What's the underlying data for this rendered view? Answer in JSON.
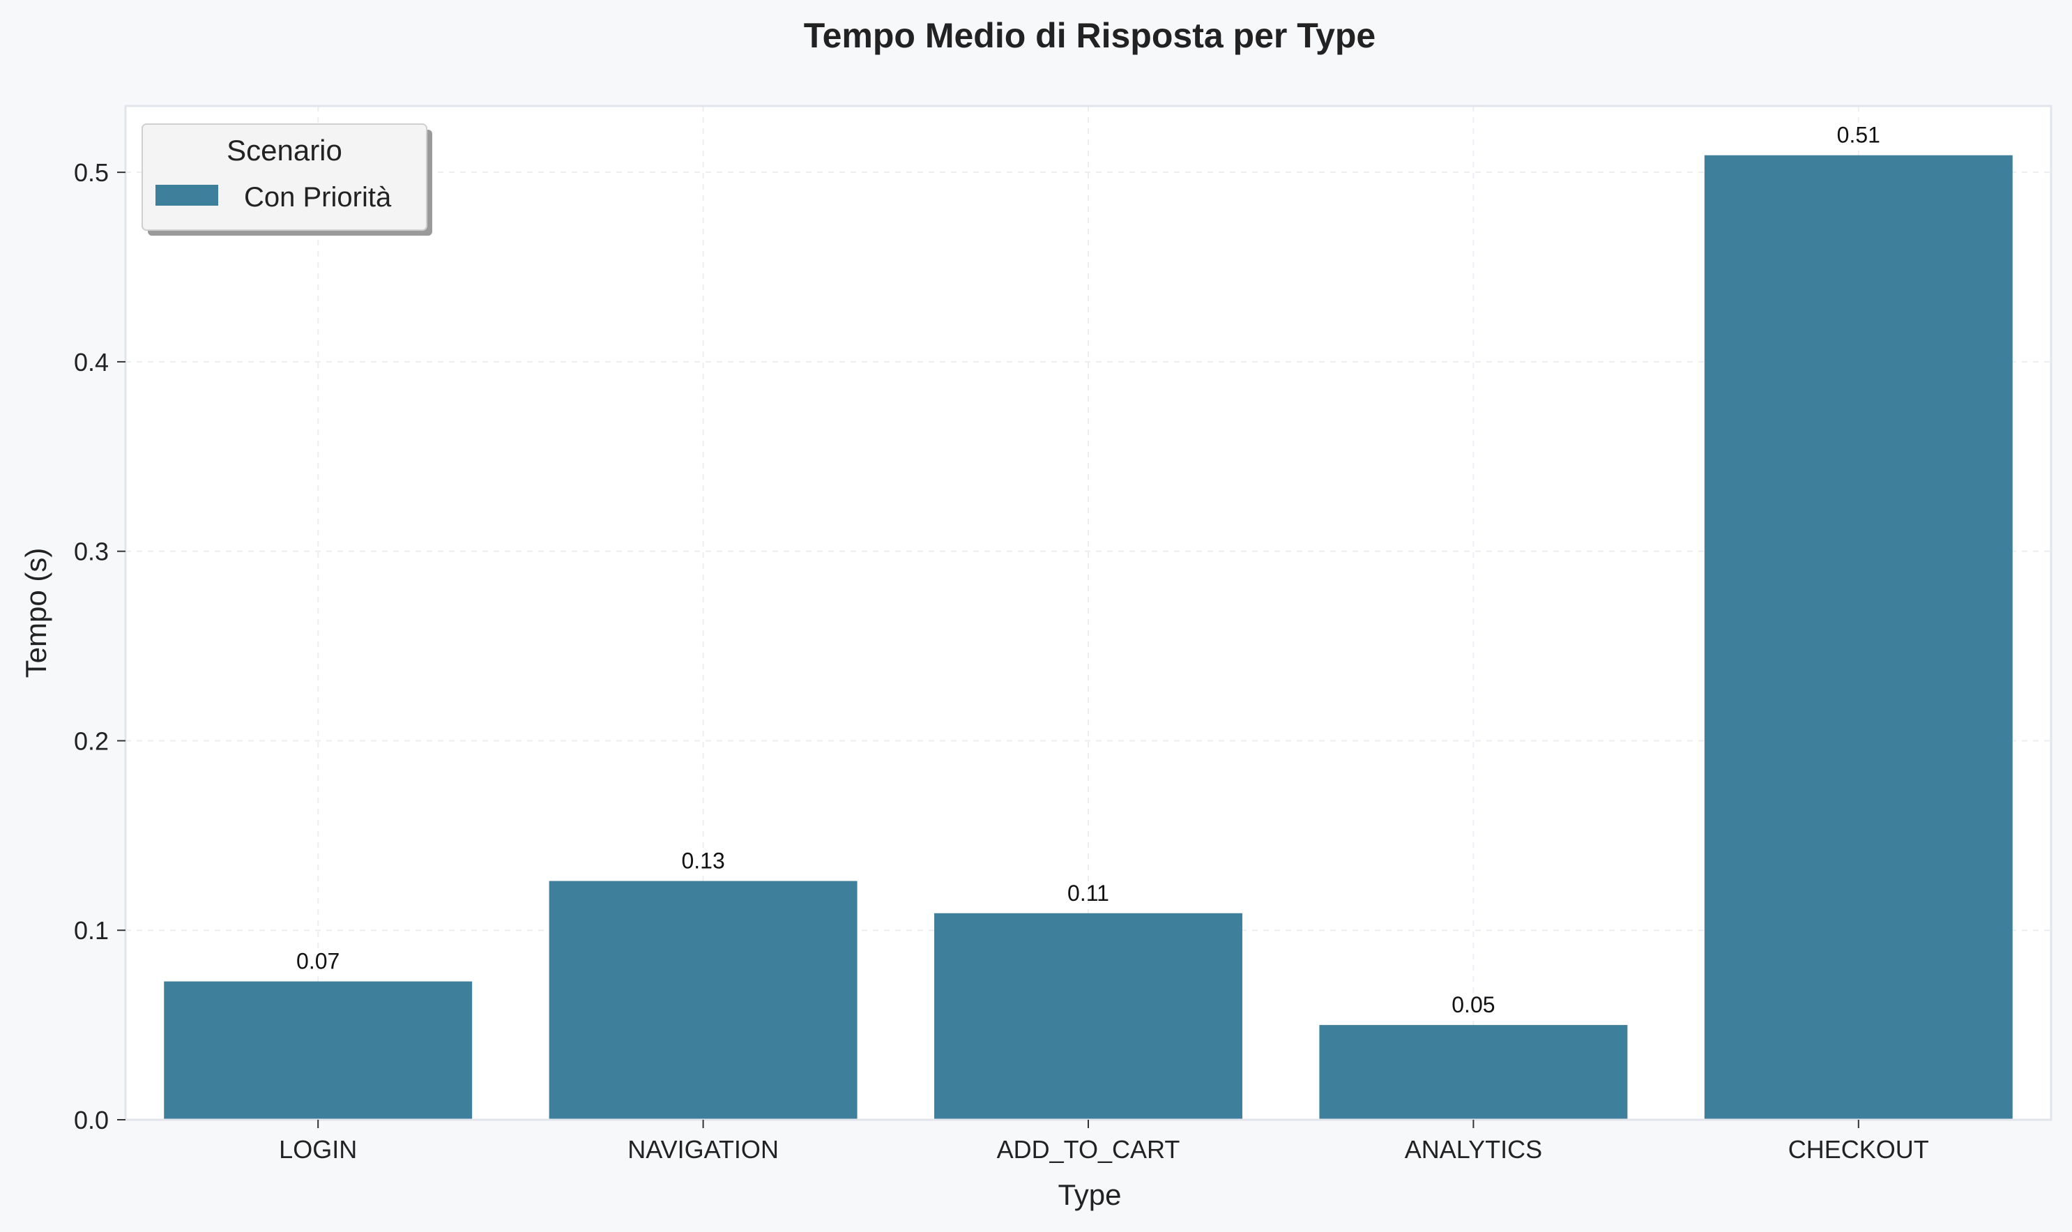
{
  "chart_data": {
    "type": "bar",
    "title": "Tempo Medio di Risposta per Type",
    "xlabel": "Type",
    "ylabel": "Tempo (s)",
    "categories": [
      "LOGIN",
      "NAVIGATION",
      "ADD_TO_CART",
      "ANALYTICS",
      "CHECKOUT"
    ],
    "series": [
      {
        "name": "Con Priorità",
        "values": [
          0.073,
          0.126,
          0.109,
          0.05,
          0.509
        ],
        "labels": [
          "0.07",
          "0.13",
          "0.11",
          "0.05",
          "0.51"
        ],
        "color": "#3e7f9b"
      }
    ],
    "ylim": [
      0,
      0.535
    ],
    "yticks": [
      0.0,
      0.1,
      0.2,
      0.3,
      0.4,
      0.5
    ],
    "ytick_labels": [
      "0.0",
      "0.1",
      "0.2",
      "0.3",
      "0.4",
      "0.5"
    ],
    "grid": true,
    "legend": {
      "title": "Scenario",
      "placement": "top-left"
    },
    "colors": {
      "page_bg": "#f7f8fa",
      "plot_bg": "#ffffff",
      "axis": "#e1e4ea",
      "grid": "#eceef2",
      "text": "#222222"
    }
  }
}
